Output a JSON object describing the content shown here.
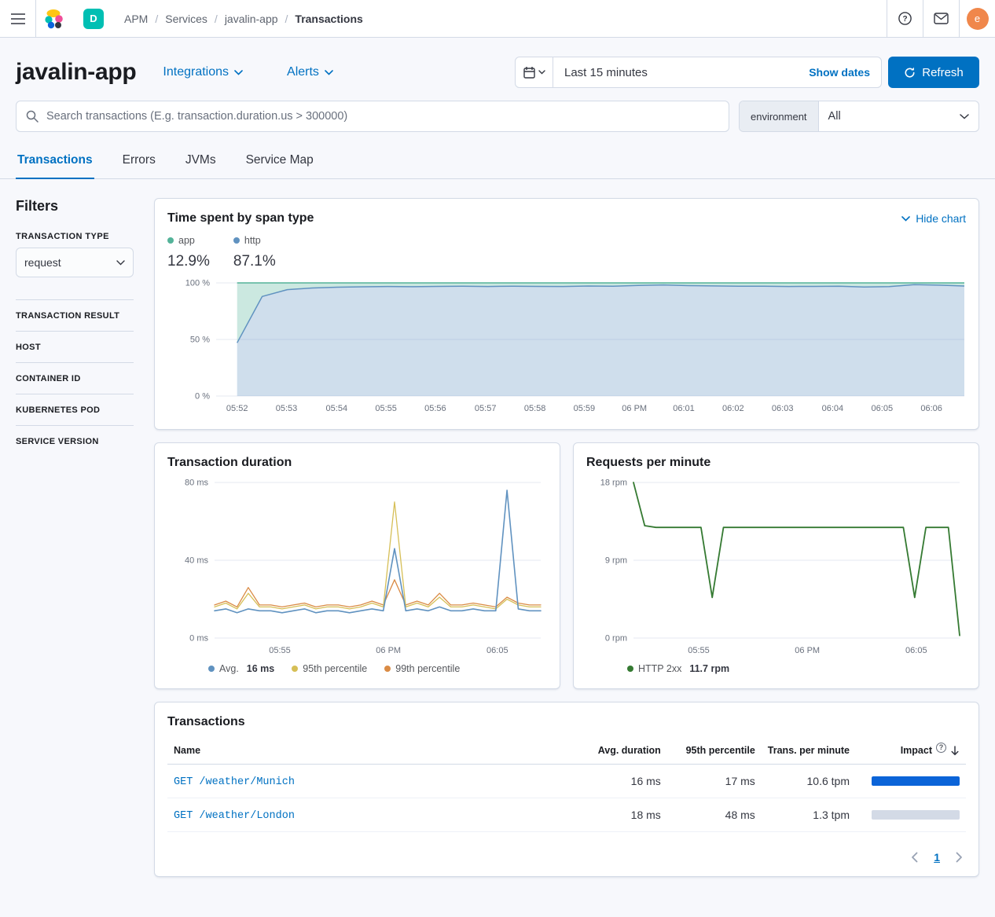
{
  "colors": {
    "primary": "#0071c2",
    "app_green": "#54B399",
    "http_blue": "#6092C0",
    "avg_blue": "#6092C0",
    "p95_yellow": "#D6BF57",
    "p99_orange": "#DA8B45",
    "throughput_green": "#357a32",
    "impact_bar": "#0B64D8",
    "impact_track": "#D3DAE6",
    "space_badge_bg": "#00BFB3",
    "avatar_bg": "#F0874B"
  },
  "topbar": {
    "breadcrumbs": [
      "APM",
      "Services",
      "javalin-app",
      "Transactions"
    ],
    "space_initial": "D",
    "user_initial": "e"
  },
  "header": {
    "title": "javalin-app",
    "integrations_label": "Integrations",
    "alerts_label": "Alerts",
    "time_range": "Last 15 minutes",
    "show_dates_label": "Show dates",
    "refresh_label": "Refresh"
  },
  "search": {
    "placeholder": "Search transactions (E.g. transaction.duration.us > 300000)",
    "environment_label": "environment",
    "environment_value": "All"
  },
  "tabs": [
    {
      "label": "Transactions"
    },
    {
      "label": "Errors"
    },
    {
      "label": "JVMs"
    },
    {
      "label": "Service Map"
    }
  ],
  "filters": {
    "heading": "Filters",
    "transaction_type_label": "TRANSACTION TYPE",
    "transaction_type_value": "request",
    "sections": [
      "TRANSACTION RESULT",
      "HOST",
      "CONTAINER ID",
      "KUBERNETES POD",
      "SERVICE VERSION"
    ]
  },
  "span_chart": {
    "title": "Time spent by span type",
    "hide_chart_label": "Hide chart",
    "legend": [
      {
        "label": "app",
        "pct": "12.9%"
      },
      {
        "label": "http",
        "pct": "87.1%"
      }
    ]
  },
  "duration_chart": {
    "title": "Transaction duration",
    "legend_avg_label": "Avg.",
    "legend_avg_value": "16 ms",
    "legend_p95": "95th percentile",
    "legend_p99": "99th percentile"
  },
  "rpm_chart": {
    "title": "Requests per minute",
    "legend_label": "HTTP 2xx",
    "legend_value": "11.7 rpm"
  },
  "table": {
    "title": "Transactions",
    "columns": [
      "Name",
      "Avg. duration",
      "95th percentile",
      "Trans. per minute",
      "Impact"
    ],
    "rows": [
      {
        "name": "GET /weather/Munich",
        "avg": "16 ms",
        "p95": "17 ms",
        "tpm": "10.6 tpm",
        "impact_pct": 100
      },
      {
        "name": "GET /weather/London",
        "avg": "18 ms",
        "p95": "48 ms",
        "tpm": "1.3 tpm",
        "impact_pct": 0
      }
    ],
    "pagination_page": "1"
  },
  "chart_data": [
    {
      "type": "stacked_area",
      "title": "Time spent by span type",
      "ylim": [
        0,
        100
      ],
      "yticks": [
        {
          "v": 0,
          "label": "0 %"
        },
        {
          "v": 50,
          "label": "50 %"
        },
        {
          "v": 100,
          "label": "100 %"
        }
      ],
      "xticks": [
        {
          "f": 0.028,
          "label": "05:52"
        },
        {
          "f": 0.094,
          "label": "05:53"
        },
        {
          "f": 0.161,
          "label": "05:54"
        },
        {
          "f": 0.227,
          "label": "05:55"
        },
        {
          "f": 0.293,
          "label": "05:56"
        },
        {
          "f": 0.36,
          "label": "05:57"
        },
        {
          "f": 0.426,
          "label": "05:58"
        },
        {
          "f": 0.492,
          "label": "05:59"
        },
        {
          "f": 0.559,
          "label": "06 PM"
        },
        {
          "f": 0.625,
          "label": "06:01"
        },
        {
          "f": 0.691,
          "label": "06:02"
        },
        {
          "f": 0.757,
          "label": "06:03"
        },
        {
          "f": 0.824,
          "label": "06:04"
        },
        {
          "f": 0.89,
          "label": "06:05"
        },
        {
          "f": 0.956,
          "label": "06:06"
        }
      ],
      "xspan": [
        0.028,
        1
      ],
      "series_name": "http share (%)",
      "values": [
        47,
        88,
        94,
        95.5,
        96.2,
        96.5,
        96.8,
        96.6,
        96.9,
        97,
        96.8,
        97.1,
        96.9,
        96.8,
        97.2,
        97.1,
        97.8,
        98.2,
        97.6,
        97.3,
        97,
        97.1,
        96.8,
        96.9,
        97,
        96.4,
        96.7,
        98.4,
        98,
        97.2
      ],
      "line_color": "#6092C0",
      "lower_fill": "rgba(96,146,192,0.30)",
      "upper_fill": "rgba(84,179,153,0.30)",
      "upper_line_color": "#54B399",
      "legend": [
        "app 12.9%",
        "http 87.1%"
      ]
    },
    {
      "type": "line",
      "title": "Transaction duration",
      "ylim": [
        0,
        80
      ],
      "yticks": [
        {
          "v": 0,
          "label": "0 ms"
        },
        {
          "v": 40,
          "label": "40 ms"
        },
        {
          "v": 80,
          "label": "80 ms"
        }
      ],
      "xticks": [
        {
          "f": 0.2,
          "label": "05:55"
        },
        {
          "f": 0.533,
          "label": "06 PM"
        },
        {
          "f": 0.867,
          "label": "06:05"
        }
      ],
      "xspan": [
        0,
        1
      ],
      "series": [
        {
          "name": "99th percentile",
          "color": "#DA8B45",
          "width": 1.3,
          "values": [
            17,
            19,
            16,
            26,
            17,
            17,
            16,
            17,
            18,
            16,
            17,
            17,
            16,
            17,
            19,
            17,
            30,
            17,
            19,
            17,
            23,
            17,
            17,
            18,
            17,
            16,
            21,
            18,
            17,
            17
          ]
        },
        {
          "name": "95th percentile",
          "color": "#D6BF57",
          "width": 1.3,
          "values": [
            16,
            18,
            15,
            23,
            16,
            16,
            15,
            16,
            17,
            15,
            16,
            16,
            15,
            16,
            18,
            16,
            70,
            16,
            18,
            16,
            21,
            16,
            16,
            17,
            16,
            15,
            20,
            17,
            16,
            16
          ]
        },
        {
          "name": "Avg. 16 ms",
          "color": "#6092C0",
          "width": 1.6,
          "values": [
            14,
            15,
            13,
            15,
            14,
            14,
            13,
            14,
            15,
            13,
            14,
            14,
            13,
            14,
            15,
            14,
            46,
            14,
            15,
            14,
            16,
            14,
            14,
            15,
            14,
            14,
            76,
            15,
            14,
            14
          ]
        }
      ]
    },
    {
      "type": "line",
      "title": "Requests per minute",
      "ylim": [
        0,
        18
      ],
      "yticks": [
        {
          "v": 0,
          "label": "0 rpm"
        },
        {
          "v": 9,
          "label": "9 rpm"
        },
        {
          "v": 18,
          "label": "18 rpm"
        }
      ],
      "xticks": [
        {
          "f": 0.2,
          "label": "05:55"
        },
        {
          "f": 0.533,
          "label": "06 PM"
        },
        {
          "f": 0.867,
          "label": "06:05"
        }
      ],
      "xspan": [
        0,
        1
      ],
      "series": [
        {
          "name": "HTTP 2xx 11.7 rpm",
          "color": "#357a32",
          "width": 1.8,
          "values": [
            18,
            13,
            12.8,
            12.8,
            12.8,
            12.8,
            12.8,
            4.7,
            12.8,
            12.8,
            12.8,
            12.8,
            12.8,
            12.8,
            12.8,
            12.8,
            12.8,
            12.8,
            12.8,
            12.8,
            12.8,
            12.8,
            12.8,
            12.8,
            12.8,
            4.7,
            12.8,
            12.8,
            12.8,
            0.3
          ]
        }
      ]
    }
  ]
}
